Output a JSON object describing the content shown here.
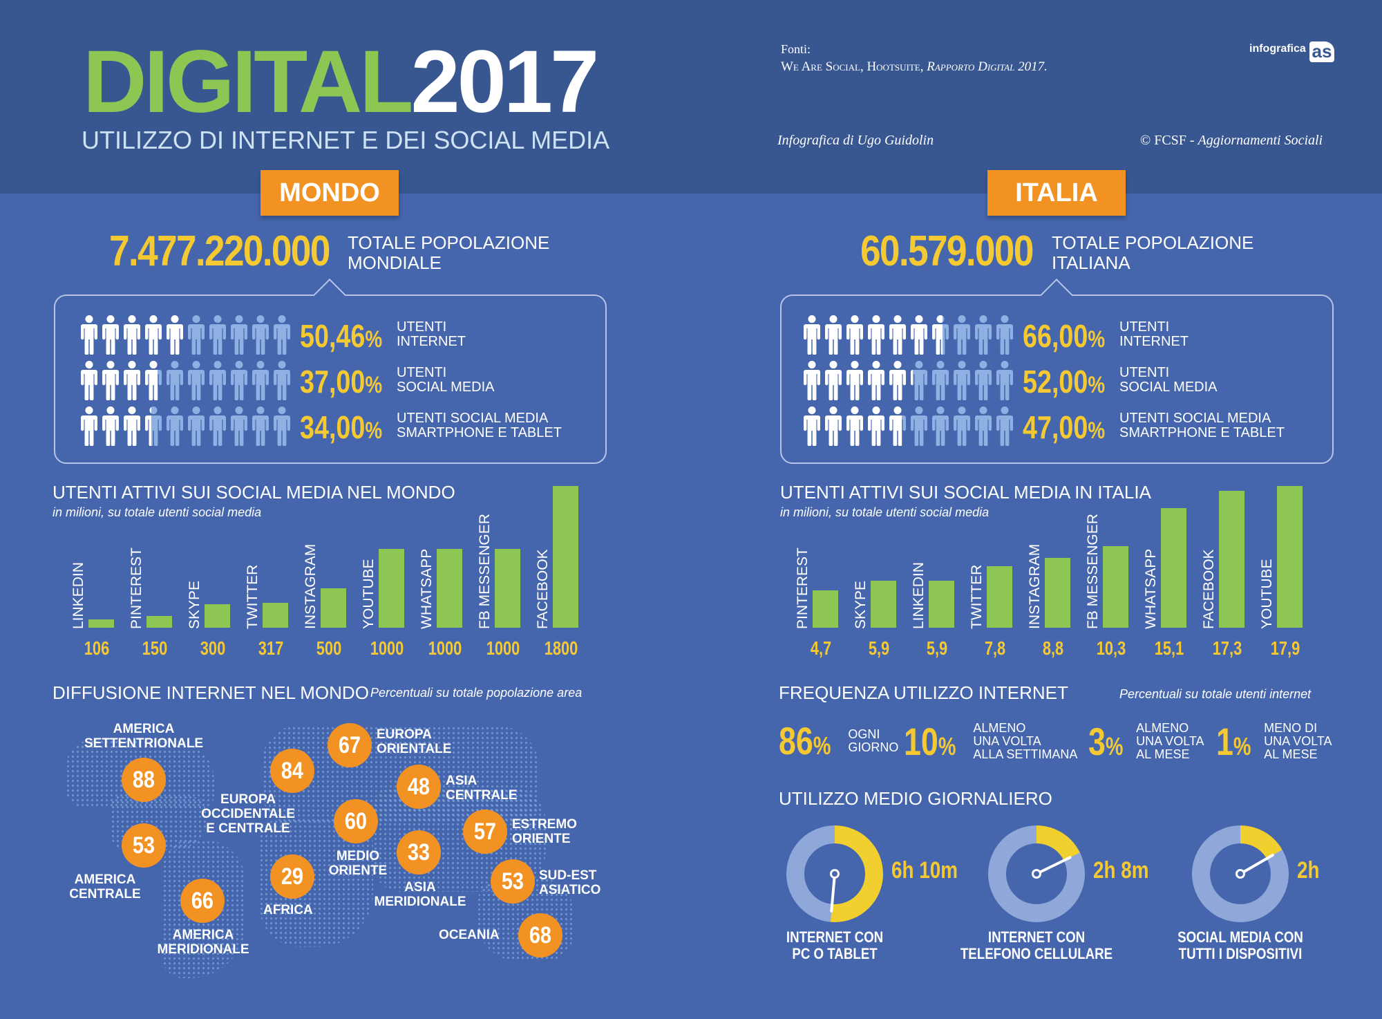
{
  "header": {
    "brand_green": "DIGITAL",
    "brand_white": "2017",
    "subtitle": "UTILIZZO DI INTERNET E DEI SOCIAL MEDIA",
    "sources_label": "Fonti:",
    "sources_orgs": "We Are Social, Hootsuite,",
    "sources_report": "Rapporto Digital 2017.",
    "logo_text": "infografica",
    "logo_mark": "as",
    "credit_author": "Infografica di Ugo Guidolin",
    "credit_copyright": "© FCSF - ",
    "credit_copyright_italic": "Aggiornamenti Sociali"
  },
  "world": {
    "tab": "MONDO",
    "population": "7.477.220.000",
    "population_label_1": "TOTALE POPOLAZIONE",
    "population_label_2": "MONDIALE",
    "usage": [
      {
        "pct": "50,46",
        "unit": "%",
        "label_1": "UTENTI",
        "label_2": "INTERNET",
        "fraction": 0.5046
      },
      {
        "pct": "37,00",
        "unit": "%",
        "label_1": "UTENTI",
        "label_2": "SOCIAL MEDIA",
        "fraction": 0.37
      },
      {
        "pct": "34,00",
        "unit": "%",
        "label_1": "UTENTI SOCIAL MEDIA",
        "label_2": "SMARTPHONE E TABLET",
        "fraction": 0.34
      }
    ],
    "social_title": "UTENTI ATTIVI SUI SOCIAL MEDIA NEL MONDO",
    "social_subtitle": "in milioni, su totale utenti social media",
    "diffusion_title": "DIFFUSIONE INTERNET NEL MONDO",
    "diffusion_subtitle": "Percentuali su totale popolazione area",
    "regions": [
      {
        "value": "88",
        "label_1": "AMERICA",
        "label_2": "SETTENTRIONALE"
      },
      {
        "value": "53",
        "label_1": "AMERICA",
        "label_2": "CENTRALE"
      },
      {
        "value": "66",
        "label_1": "AMERICA",
        "label_2": "MERIDIONALE"
      },
      {
        "value": "84",
        "label_1": "EUROPA",
        "label_2": "OCCIDENTALE",
        "label_3": "E CENTRALE"
      },
      {
        "value": "67",
        "label_1": "EUROPA",
        "label_2": "ORIENTALE"
      },
      {
        "value": "60",
        "label_1": "MEDIO",
        "label_2": "ORIENTE"
      },
      {
        "value": "29",
        "label_1": "AFRICA"
      },
      {
        "value": "48",
        "label_1": "ASIA",
        "label_2": "CENTRALE"
      },
      {
        "value": "33",
        "label_1": "ASIA",
        "label_2": "MERIDIONALE"
      },
      {
        "value": "57",
        "label_1": "ESTREMO",
        "label_2": "ORIENTE"
      },
      {
        "value": "53",
        "label_1": "SUD-EST",
        "label_2": "ASIATICO"
      },
      {
        "value": "68",
        "label_1": "OCEANIA"
      }
    ]
  },
  "italy": {
    "tab": "ITALIA",
    "population": "60.579.000",
    "population_label_1": "TOTALE POPOLAZIONE",
    "population_label_2": "ITALIANA",
    "usage": [
      {
        "pct": "66,00",
        "unit": "%",
        "label_1": "UTENTI",
        "label_2": "INTERNET",
        "fraction": 0.66
      },
      {
        "pct": "52,00",
        "unit": "%",
        "label_1": "UTENTI",
        "label_2": "SOCIAL MEDIA",
        "fraction": 0.52
      },
      {
        "pct": "47,00",
        "unit": "%",
        "label_1": "UTENTI SOCIAL MEDIA",
        "label_2": "SMARTPHONE E TABLET",
        "fraction": 0.47
      }
    ],
    "social_title": "UTENTI ATTIVI SUI SOCIAL MEDIA IN ITALIA",
    "social_subtitle": "in milioni, su totale utenti social media",
    "frequency_title": "FREQUENZA UTILIZZO INTERNET",
    "frequency_subtitle": "Percentuali su totale utenti internet",
    "frequency": [
      {
        "pct": "86",
        "unit": "%",
        "label_1": "OGNI",
        "label_2": "GIORNO"
      },
      {
        "pct": "10",
        "unit": "%",
        "label_1": "ALMENO",
        "label_2": "UNA VOLTA",
        "label_3": "ALLA SETTIMANA"
      },
      {
        "pct": "3",
        "unit": "%",
        "label_1": "ALMENO",
        "label_2": "UNA VOLTA",
        "label_3": "AL MESE"
      },
      {
        "pct": "1",
        "unit": "%",
        "label_1": "MENO DI",
        "label_2": "UNA VOLTA",
        "label_3": "AL MESE"
      }
    ],
    "daily_title": "UTILIZZO MEDIO GIORNALIERO",
    "daily": [
      {
        "time": "6h 10m",
        "minutes": 370,
        "label_1": "INTERNET CON",
        "label_2": "PC O TABLET"
      },
      {
        "time": "2h 8m",
        "minutes": 128,
        "label_1": "INTERNET CON",
        "label_2": "TELEFONO CELLULARE"
      },
      {
        "time": "2h",
        "minutes": 120,
        "label_1": "SOCIAL MEDIA CON",
        "label_2": "TUTTI I DISPOSITIVI"
      }
    ]
  },
  "colors": {
    "bar": "#8dc653",
    "value": "#f5c932",
    "accent": "#f29223",
    "person_on": "#ffffff",
    "person_off": "#8fb0e2",
    "donut_fill": "#f0cf2e",
    "donut_track": "#8fa7d9"
  },
  "chart_data": [
    {
      "type": "bar",
      "title": "UTENTI ATTIVI SUI SOCIAL MEDIA NEL MONDO",
      "subtitle": "in milioni, su totale utenti social media",
      "categories": [
        "LINKEDIN",
        "PINTEREST",
        "SKYPE",
        "TWITTER",
        "INSTAGRAM",
        "YOUTUBE",
        "WHATSAPP",
        "FB MESSENGER",
        "FACEBOOK"
      ],
      "values": [
        106,
        150,
        300,
        317,
        500,
        1000,
        1000,
        1000,
        1800
      ],
      "value_labels": [
        "106",
        "150",
        "300",
        "317",
        "500",
        "1000",
        "1000",
        "1000",
        "1800"
      ],
      "ylim": [
        0,
        1800
      ],
      "grid": false
    },
    {
      "type": "bar",
      "title": "UTENTI ATTIVI SUI SOCIAL MEDIA IN ITALIA",
      "subtitle": "in milioni, su totale utenti social media",
      "categories": [
        "PINTEREST",
        "SKYPE",
        "LINKEDIN",
        "TWITTER",
        "INSTAGRAM",
        "FB MESSENGER",
        "WHATSAPP",
        "FACEBOOK",
        "YOUTUBE"
      ],
      "values": [
        4.7,
        5.9,
        5.9,
        7.8,
        8.8,
        10.3,
        15.1,
        17.3,
        17.9
      ],
      "value_labels": [
        "4,7",
        "5,9",
        "5,9",
        "7,8",
        "8,8",
        "10,3",
        "15,1",
        "17,3",
        "17,9"
      ],
      "ylim": [
        0,
        17.9
      ],
      "grid": false
    }
  ]
}
